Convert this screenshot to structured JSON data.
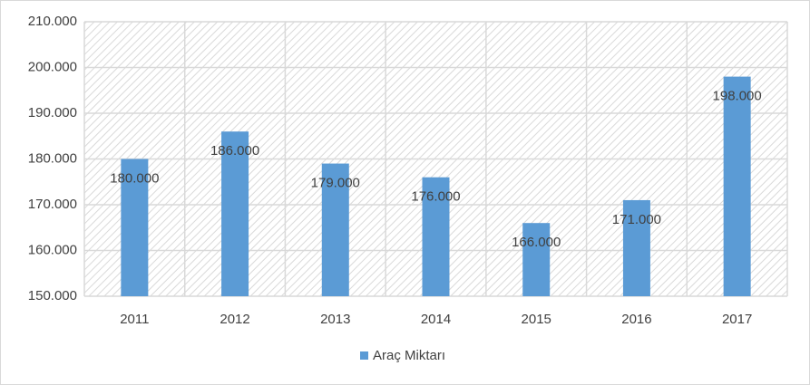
{
  "chart_data": {
    "type": "bar",
    "categories": [
      "2011",
      "2012",
      "2013",
      "2014",
      "2015",
      "2016",
      "2017"
    ],
    "series": [
      {
        "name": "Araç Miktarı",
        "color": "#5b9bd5",
        "values": [
          180000,
          186000,
          179000,
          176000,
          166000,
          171000,
          198000
        ],
        "value_labels": [
          "180.000",
          "186.000",
          "179.000",
          "176.000",
          "166.000",
          "171.000",
          "198.000"
        ]
      }
    ],
    "ylim": [
      150000,
      210000
    ],
    "yticks": [
      {
        "value": 150000,
        "label": "150.000"
      },
      {
        "value": 160000,
        "label": "160.000"
      },
      {
        "value": 170000,
        "label": "170.000"
      },
      {
        "value": 180000,
        "label": "180.000"
      },
      {
        "value": 190000,
        "label": "190.000"
      },
      {
        "value": 200000,
        "label": "200.000"
      },
      {
        "value": 210000,
        "label": "210.000"
      }
    ],
    "grid": true,
    "legend": "bottom"
  }
}
